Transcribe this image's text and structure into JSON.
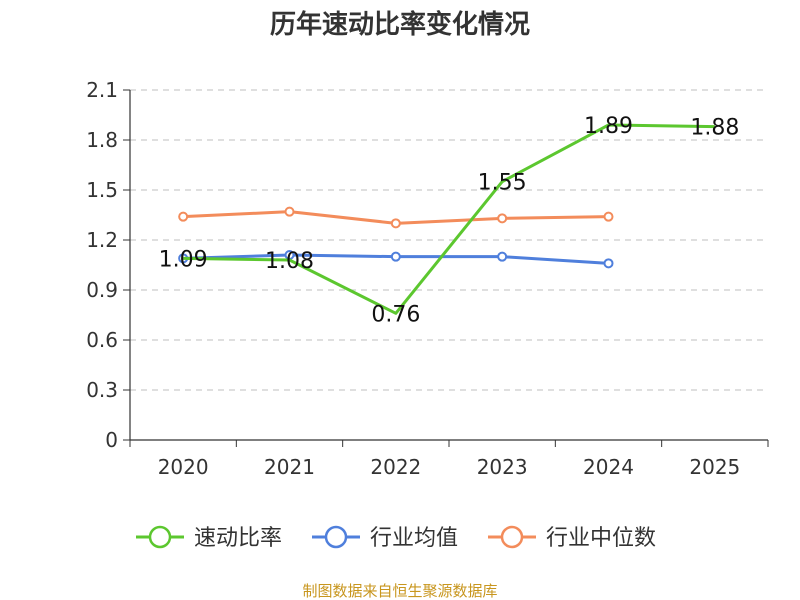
{
  "chart_data": {
    "type": "line",
    "title": "历年速动比率变化情况",
    "categories": [
      "2020",
      "2021",
      "2022",
      "2023",
      "2024",
      "2025"
    ],
    "ylim": [
      0,
      2.1
    ],
    "yticks": [
      "0",
      "0.3",
      "0.6",
      "0.9",
      "1.2",
      "1.5",
      "1.8",
      "2.1"
    ],
    "grid": true,
    "legend_position": "bottom",
    "series": [
      {
        "name": "速动比率",
        "color": "#5cc72f",
        "values": [
          1.09,
          1.08,
          0.76,
          1.55,
          1.89,
          1.88
        ],
        "labels": [
          "1.09",
          "1.08",
          "0.76",
          "1.55",
          "1.89",
          "1.88"
        ],
        "show_labels": true,
        "markers": false
      },
      {
        "name": "行业均值",
        "color": "#4f7fdc",
        "values": [
          1.09,
          1.11,
          1.1,
          1.1,
          1.06,
          null
        ],
        "show_labels": false,
        "markers": true
      },
      {
        "name": "行业中位数",
        "color": "#f38c5b",
        "values": [
          1.34,
          1.37,
          1.3,
          1.33,
          1.34,
          null
        ],
        "show_labels": false,
        "markers": true
      }
    ],
    "source": "制图数据来自恒生聚源数据库"
  }
}
